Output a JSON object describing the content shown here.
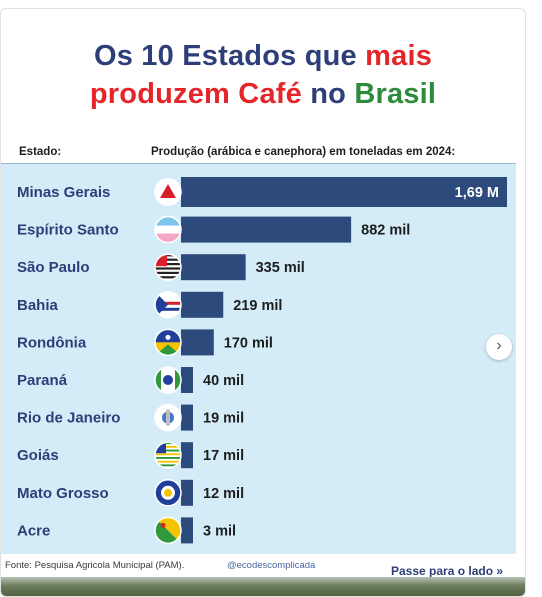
{
  "title": {
    "part1": "Os 10 Estados que ",
    "part2": "mais",
    "part3": "produzem ",
    "part4": "Café",
    "part5": " no ",
    "part6": "Brasil"
  },
  "colors": {
    "title_blue": "#2d3e78",
    "title_red": "#e4262b",
    "title_green": "#2e8b3c",
    "bar": "#2d4a7c",
    "panel": "#d3ecf8"
  },
  "chart_data": {
    "type": "bar",
    "orientation": "horizontal",
    "header_category": "Estado:",
    "header_value": "Produção (arábica e canephora) em toneladas em 2024:",
    "categories": [
      "Minas Gerais",
      "Espírito Santo",
      "São Paulo",
      "Bahia",
      "Rondônia",
      "Paraná",
      "Rio de Janeiro",
      "Goiás",
      "Mato Grosso",
      "Acre"
    ],
    "values": [
      1690000,
      882000,
      335000,
      219000,
      170000,
      40000,
      19000,
      17000,
      12000,
      3000
    ],
    "labels": [
      "1,69 M",
      "882 mil",
      "335 mil",
      "219 mil",
      "170 mil",
      "40 mil",
      "19 mil",
      "17 mil",
      "12 mil",
      "3 mil"
    ],
    "flag_icons": [
      "flag-minas-gerais-icon",
      "flag-espirito-santo-icon",
      "flag-sao-paulo-icon",
      "flag-bahia-icon",
      "flag-rondonia-icon",
      "flag-parana-icon",
      "flag-rio-de-janeiro-icon",
      "flag-goias-icon",
      "flag-mato-grosso-icon",
      "flag-acre-icon"
    ]
  },
  "footer": {
    "source": "Fonte: Pesquisa Agricola Municipal (PAM).",
    "handle": "@ecodescomplicada",
    "swipe": "Passe para o lado »"
  },
  "nav": {
    "next_icon": "chevron-right-icon"
  }
}
